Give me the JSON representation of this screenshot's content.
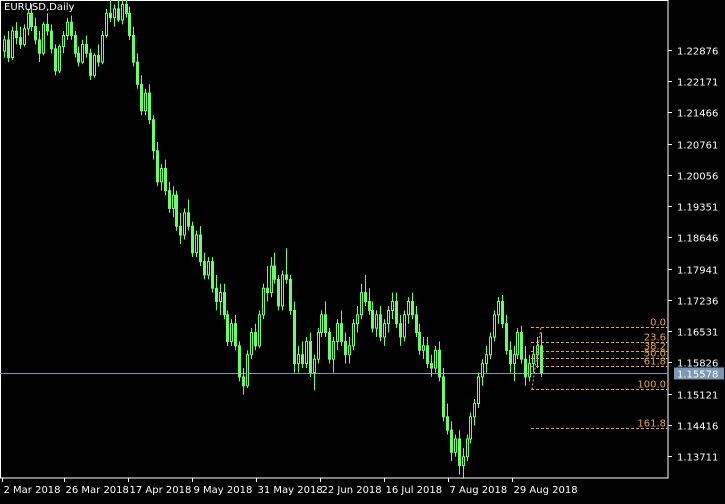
{
  "chart_title": "EURUSD,Daily",
  "colors": {
    "background": "#000000",
    "frame": "#ffffff",
    "candle": "#66ff66",
    "fib": "#e8a33c",
    "price_line": "#7a98b3",
    "price_tag_bg": "#7a98b3",
    "axis_text": "#ffffff"
  },
  "chart_data": {
    "type": "candlestick",
    "title": "EURUSD,Daily",
    "symbol": "EURUSD",
    "timeframe": "Daily",
    "x_tick_labels": [
      "2 Mar 2018",
      "26 Mar 2018",
      "17 Apr 2018",
      "9 May 2018",
      "31 May 2018",
      "22 Jun 2018",
      "16 Jul 2018",
      "7 Aug 2018",
      "29 Aug 2018"
    ],
    "y_tick_labels": [
      "1.22876",
      "1.22171",
      "1.21466",
      "1.20761",
      "1.20056",
      "1.19351",
      "1.18646",
      "1.17941",
      "1.17236",
      "1.16531",
      "1.15826",
      "1.15121",
      "1.14416",
      "1.13711"
    ],
    "y_ticks": [
      1.22876,
      1.22171,
      1.21466,
      1.20761,
      1.20056,
      1.19351,
      1.18646,
      1.17941,
      1.17236,
      1.16531,
      1.15826,
      1.15121,
      1.14416,
      1.13711
    ],
    "ylim": [
      1.1322,
      1.24
    ],
    "current_price": "1.15578",
    "current_price_value": 1.15578,
    "fibonacci": {
      "high": 1.16625,
      "low": 1.15219,
      "levels": [
        {
          "label": "0.0",
          "value": 1.16625
        },
        {
          "label": "23.6",
          "value": 1.16293
        },
        {
          "label": "38.2",
          "value": 1.16088
        },
        {
          "label": "50.0",
          "value": 1.15922
        },
        {
          "label": "61.8",
          "value": 1.15756
        },
        {
          "label": "100.0",
          "value": 1.15219
        },
        {
          "label": "161.8",
          "value": 1.1435
        }
      ]
    },
    "candles": [
      [
        1.2285,
        1.232,
        1.227,
        1.231
      ],
      [
        1.231,
        1.233,
        1.226,
        1.227
      ],
      [
        1.227,
        1.234,
        1.2265,
        1.233
      ],
      [
        1.233,
        1.235,
        1.23,
        1.2315
      ],
      [
        1.2315,
        1.234,
        1.229,
        1.23
      ],
      [
        1.23,
        1.2345,
        1.2295,
        1.2335
      ],
      [
        1.2335,
        1.238,
        1.232,
        1.237
      ],
      [
        1.237,
        1.239,
        1.233,
        1.234
      ],
      [
        1.234,
        1.236,
        1.23,
        1.231
      ],
      [
        1.231,
        1.233,
        1.226,
        1.228
      ],
      [
        1.228,
        1.235,
        1.2275,
        1.2345
      ],
      [
        1.2345,
        1.237,
        1.232,
        1.233
      ],
      [
        1.233,
        1.2345,
        1.228,
        1.229
      ],
      [
        1.229,
        1.23,
        1.223,
        1.224
      ],
      [
        1.224,
        1.23,
        1.2235,
        1.2295
      ],
      [
        1.2295,
        1.233,
        1.228,
        1.232
      ],
      [
        1.232,
        1.236,
        1.231,
        1.235
      ],
      [
        1.235,
        1.2365,
        1.231,
        1.232
      ],
      [
        1.232,
        1.233,
        1.227,
        1.228
      ],
      [
        1.228,
        1.2295,
        1.225,
        1.226
      ],
      [
        1.226,
        1.231,
        1.2255,
        1.23
      ],
      [
        1.23,
        1.232,
        1.227,
        1.228
      ],
      [
        1.228,
        1.229,
        1.222,
        1.223
      ],
      [
        1.223,
        1.228,
        1.2225,
        1.2275
      ],
      [
        1.2275,
        1.23,
        1.225,
        1.226
      ],
      [
        1.226,
        1.233,
        1.2255,
        1.232
      ],
      [
        1.232,
        1.238,
        1.2315,
        1.237
      ],
      [
        1.237,
        1.24,
        1.235,
        1.236
      ],
      [
        1.236,
        1.239,
        1.234,
        1.238
      ],
      [
        1.238,
        1.24,
        1.235,
        1.2355
      ],
      [
        1.2355,
        1.24,
        1.2345,
        1.239
      ],
      [
        1.239,
        1.24,
        1.236,
        1.237
      ],
      [
        1.237,
        1.2385,
        1.231,
        1.232
      ],
      [
        1.232,
        1.234,
        1.225,
        1.226
      ],
      [
        1.226,
        1.228,
        1.22,
        1.221
      ],
      [
        1.221,
        1.223,
        1.214,
        1.215
      ],
      [
        1.215,
        1.22,
        1.214,
        1.219
      ],
      [
        1.219,
        1.221,
        1.212,
        1.213
      ],
      [
        1.213,
        1.214,
        1.204,
        1.206
      ],
      [
        1.206,
        1.208,
        1.198,
        1.199
      ],
      [
        1.199,
        1.203,
        1.197,
        1.202
      ],
      [
        1.202,
        1.204,
        1.196,
        1.197
      ],
      [
        1.197,
        1.199,
        1.192,
        1.193
      ],
      [
        1.193,
        1.198,
        1.191,
        1.196
      ],
      [
        1.196,
        1.197,
        1.188,
        1.189
      ],
      [
        1.189,
        1.192,
        1.185,
        1.187
      ],
      [
        1.187,
        1.193,
        1.186,
        1.192
      ],
      [
        1.192,
        1.195,
        1.188,
        1.189
      ],
      [
        1.189,
        1.19,
        1.182,
        1.183
      ],
      [
        1.183,
        1.188,
        1.182,
        1.187
      ],
      [
        1.187,
        1.189,
        1.18,
        1.181
      ],
      [
        1.181,
        1.183,
        1.177,
        1.178
      ],
      [
        1.178,
        1.182,
        1.177,
        1.181
      ],
      [
        1.181,
        1.182,
        1.174,
        1.175
      ],
      [
        1.175,
        1.178,
        1.17,
        1.172
      ],
      [
        1.172,
        1.176,
        1.169,
        1.174
      ],
      [
        1.174,
        1.176,
        1.168,
        1.169
      ],
      [
        1.169,
        1.17,
        1.162,
        1.163
      ],
      [
        1.163,
        1.168,
        1.162,
        1.167
      ],
      [
        1.167,
        1.169,
        1.161,
        1.162
      ],
      [
        1.162,
        1.163,
        1.154,
        1.155
      ],
      [
        1.155,
        1.157,
        1.151,
        1.153
      ],
      [
        1.153,
        1.161,
        1.1525,
        1.16
      ],
      [
        1.16,
        1.166,
        1.159,
        1.165
      ],
      [
        1.165,
        1.167,
        1.161,
        1.162
      ],
      [
        1.162,
        1.17,
        1.1615,
        1.169
      ],
      [
        1.169,
        1.176,
        1.168,
        1.175
      ],
      [
        1.175,
        1.18,
        1.172,
        1.174
      ],
      [
        1.174,
        1.182,
        1.173,
        1.18
      ],
      [
        1.18,
        1.183,
        1.176,
        1.177
      ],
      [
        1.177,
        1.178,
        1.17,
        1.171
      ],
      [
        1.171,
        1.179,
        1.17,
        1.178
      ],
      [
        1.178,
        1.184,
        1.176,
        1.177
      ],
      [
        1.177,
        1.178,
        1.169,
        1.17
      ],
      [
        1.17,
        1.172,
        1.156,
        1.158
      ],
      [
        1.158,
        1.162,
        1.156,
        1.16
      ],
      [
        1.16,
        1.163,
        1.157,
        1.158
      ],
      [
        1.158,
        1.164,
        1.157,
        1.163
      ],
      [
        1.163,
        1.165,
        1.155,
        1.156
      ],
      [
        1.156,
        1.16,
        1.152,
        1.159
      ],
      [
        1.159,
        1.166,
        1.158,
        1.165
      ],
      [
        1.165,
        1.17,
        1.164,
        1.169
      ],
      [
        1.169,
        1.172,
        1.164,
        1.165
      ],
      [
        1.165,
        1.166,
        1.158,
        1.159
      ],
      [
        1.159,
        1.164,
        1.156,
        1.163
      ],
      [
        1.163,
        1.168,
        1.161,
        1.167
      ],
      [
        1.167,
        1.17,
        1.162,
        1.163
      ],
      [
        1.163,
        1.165,
        1.158,
        1.16
      ],
      [
        1.16,
        1.164,
        1.158,
        1.162
      ],
      [
        1.162,
        1.168,
        1.161,
        1.167
      ],
      [
        1.167,
        1.171,
        1.165,
        1.169
      ],
      [
        1.169,
        1.176,
        1.168,
        1.174
      ],
      [
        1.174,
        1.178,
        1.171,
        1.172
      ],
      [
        1.172,
        1.175,
        1.169,
        1.17
      ],
      [
        1.17,
        1.172,
        1.165,
        1.166
      ],
      [
        1.166,
        1.17,
        1.164,
        1.169
      ],
      [
        1.169,
        1.171,
        1.163,
        1.164
      ],
      [
        1.164,
        1.168,
        1.162,
        1.167
      ],
      [
        1.167,
        1.171,
        1.165,
        1.17
      ],
      [
        1.17,
        1.174,
        1.168,
        1.172
      ],
      [
        1.172,
        1.174,
        1.166,
        1.167
      ],
      [
        1.167,
        1.169,
        1.162,
        1.164
      ],
      [
        1.164,
        1.17,
        1.163,
        1.169
      ],
      [
        1.169,
        1.173,
        1.167,
        1.172
      ],
      [
        1.172,
        1.174,
        1.168,
        1.169
      ],
      [
        1.169,
        1.171,
        1.164,
        1.165
      ],
      [
        1.165,
        1.167,
        1.16,
        1.161
      ],
      [
        1.161,
        1.164,
        1.159,
        1.162
      ],
      [
        1.162,
        1.164,
        1.157,
        1.158
      ],
      [
        1.158,
        1.16,
        1.155,
        1.157
      ],
      [
        1.157,
        1.162,
        1.156,
        1.161
      ],
      [
        1.161,
        1.163,
        1.154,
        1.155
      ],
      [
        1.155,
        1.157,
        1.145,
        1.146
      ],
      [
        1.146,
        1.149,
        1.142,
        1.143
      ],
      [
        1.143,
        1.145,
        1.136,
        1.138
      ],
      [
        1.138,
        1.142,
        1.137,
        1.141
      ],
      [
        1.141,
        1.143,
        1.133,
        1.135
      ],
      [
        1.135,
        1.139,
        1.132,
        1.137
      ],
      [
        1.137,
        1.142,
        1.136,
        1.141
      ],
      [
        1.141,
        1.147,
        1.14,
        1.146
      ],
      [
        1.146,
        1.15,
        1.144,
        1.149
      ],
      [
        1.149,
        1.156,
        1.148,
        1.155
      ],
      [
        1.155,
        1.159,
        1.153,
        1.158
      ],
      [
        1.158,
        1.162,
        1.156,
        1.16
      ],
      [
        1.16,
        1.165,
        1.159,
        1.164
      ],
      [
        1.164,
        1.17,
        1.163,
        1.169
      ],
      [
        1.169,
        1.173,
        1.167,
        1.172
      ],
      [
        1.172,
        1.1735,
        1.166,
        1.167
      ],
      [
        1.167,
        1.169,
        1.16,
        1.161
      ],
      [
        1.161,
        1.163,
        1.156,
        1.158
      ],
      [
        1.158,
        1.162,
        1.154,
        1.16
      ],
      [
        1.16,
        1.166,
        1.159,
        1.165
      ],
      [
        1.165,
        1.1665,
        1.158,
        1.159
      ],
      [
        1.159,
        1.162,
        1.153,
        1.155
      ],
      [
        1.155,
        1.16,
        1.154,
        1.158
      ],
      [
        1.158,
        1.162,
        1.156,
        1.16
      ],
      [
        1.16,
        1.164,
        1.157,
        1.162
      ],
      [
        1.162,
        1.165,
        1.155,
        1.156
      ]
    ]
  }
}
